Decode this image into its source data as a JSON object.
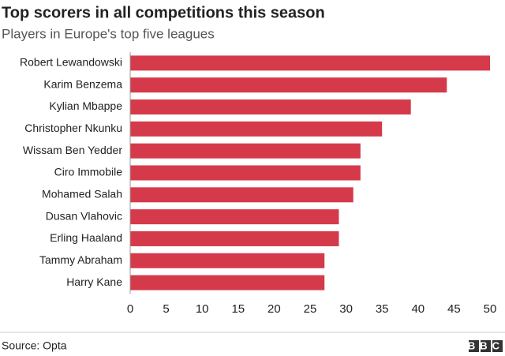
{
  "chart_data": {
    "type": "bar",
    "orientation": "horizontal",
    "title": "Top scorers in all competitions this season",
    "subtitle": "Players in Europe's top five leagues",
    "categories": [
      "Robert Lewandowski",
      "Karim Benzema",
      "Kylian Mbappe",
      "Christopher Nkunku",
      "Wissam Ben Yedder",
      "Ciro Immobile",
      "Mohamed Salah",
      "Dusan Vlahovic",
      "Erling Haaland",
      "Tammy Abraham",
      "Harry Kane"
    ],
    "values": [
      50,
      44,
      39,
      35,
      32,
      32,
      31,
      29,
      29,
      27,
      27
    ],
    "color": "#d53a4b",
    "xlim": [
      0,
      50
    ],
    "xticks": [
      0,
      5,
      10,
      15,
      20,
      25,
      30,
      35,
      40,
      45,
      50
    ],
    "grid": false,
    "source": "Source: Opta",
    "logo": "BBC"
  }
}
